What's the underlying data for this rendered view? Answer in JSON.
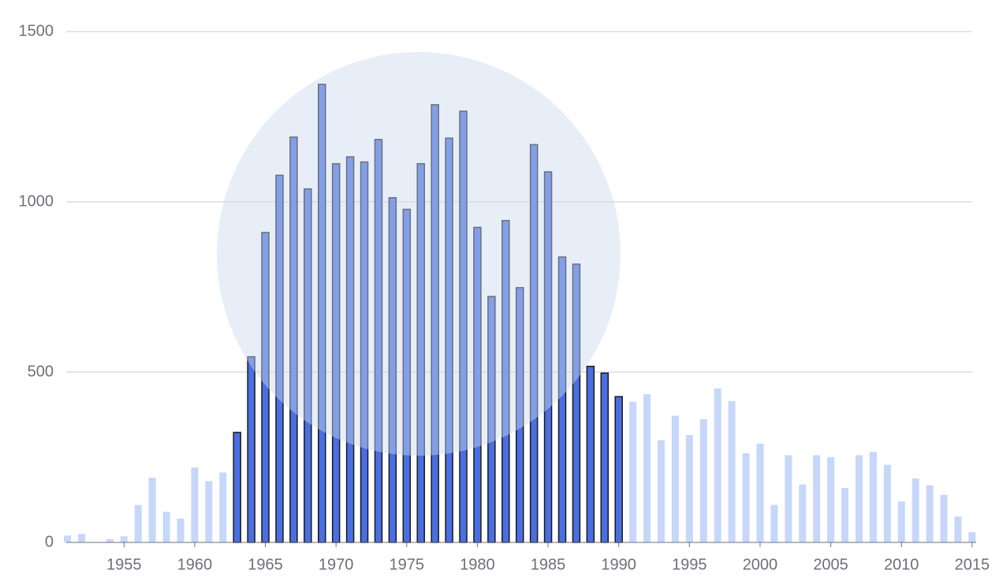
{
  "chart_data": {
    "type": "bar",
    "x": [
      1951,
      1952,
      1953,
      1954,
      1955,
      1956,
      1957,
      1958,
      1959,
      1960,
      1961,
      1962,
      1963,
      1964,
      1965,
      1966,
      1967,
      1968,
      1969,
      1970,
      1971,
      1972,
      1973,
      1974,
      1975,
      1976,
      1977,
      1978,
      1979,
      1980,
      1981,
      1982,
      1983,
      1984,
      1985,
      1986,
      1987,
      1988,
      1989,
      1990,
      1991,
      1992,
      1993,
      1994,
      1995,
      1996,
      1997,
      1998,
      1999,
      2000,
      2001,
      2002,
      2003,
      2004,
      2005,
      2006,
      2007,
      2008,
      2009,
      2010,
      2011,
      2012,
      2013,
      2014,
      2015
    ],
    "values": [
      20,
      25,
      0,
      10,
      18,
      110,
      190,
      90,
      70,
      220,
      180,
      205,
      323,
      545,
      910,
      1078,
      1190,
      1038,
      1345,
      1112,
      1132,
      1117,
      1183,
      1012,
      978,
      1112,
      1285,
      1187,
      1266,
      925,
      722,
      945,
      748,
      1168,
      1088,
      838,
      817,
      517,
      497,
      428,
      413,
      435,
      300,
      372,
      315,
      362,
      452,
      415,
      262,
      290,
      110,
      256,
      170,
      256,
      250,
      160,
      256,
      266,
      228,
      120,
      188,
      168,
      140,
      76,
      30
    ],
    "color": "#c6d7fa",
    "highlight_color": "#4a6fe3",
    "highlight": [
      1963,
      1990
    ],
    "xlim": [
      1950.8,
      2015.4
    ],
    "xticks": [
      1955,
      1960,
      1965,
      1970,
      1975,
      1980,
      1985,
      1990,
      1995,
      2000,
      2005,
      2010,
      2015
    ],
    "ylim": [
      0,
      1500
    ],
    "yticks": [
      0,
      500,
      1000,
      1500
    ],
    "grid": true
  }
}
